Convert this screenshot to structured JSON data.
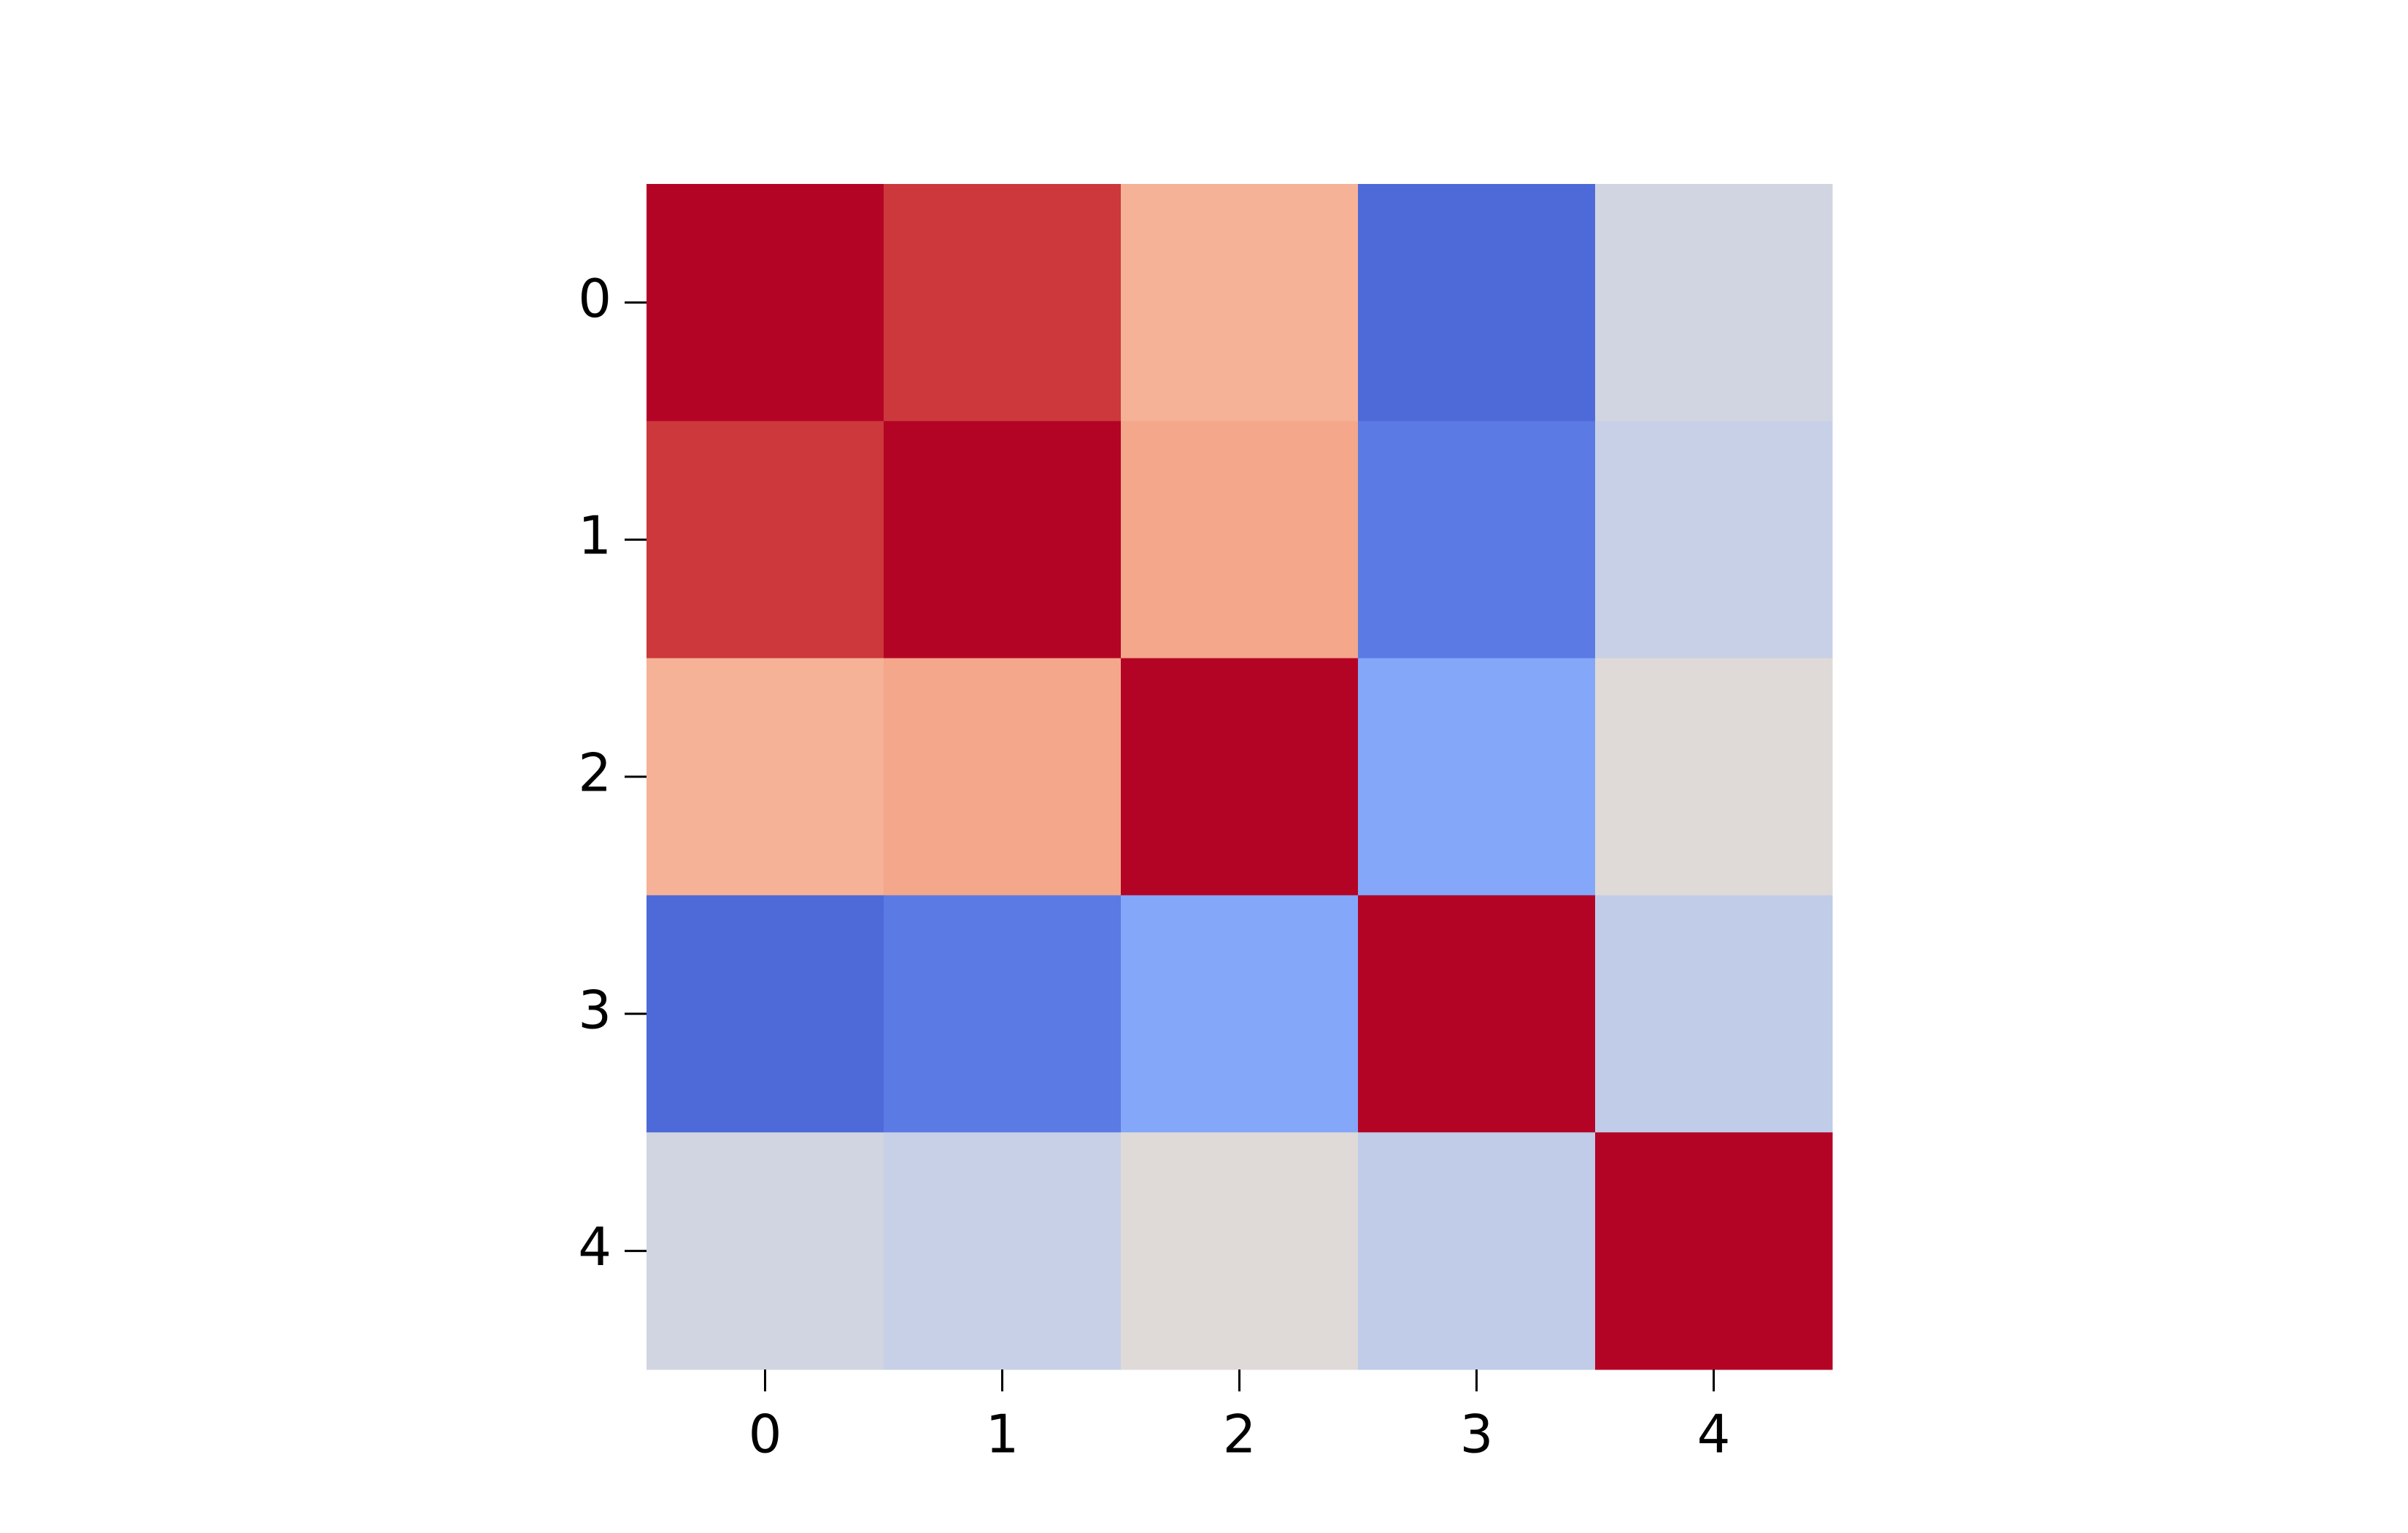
{
  "chart_data": {
    "type": "heatmap",
    "colormap": "coolwarm",
    "color_range": [
      -1,
      1
    ],
    "xticks": [
      0,
      1,
      2,
      3,
      4
    ],
    "yticks": [
      0,
      1,
      2,
      3,
      4
    ],
    "values": [
      [
        1,
        0.86,
        0.36,
        -0.74,
        -0.04
      ],
      [
        0.86,
        1,
        0.42,
        -0.58,
        -0.07
      ],
      [
        0.36,
        0.42,
        1,
        -0.3,
        0.02
      ],
      [
        -0.74,
        -0.58,
        -0.3,
        1,
        -0.09
      ],
      [
        -0.04,
        -0.07,
        0.02,
        -0.09,
        1
      ]
    ]
  }
}
